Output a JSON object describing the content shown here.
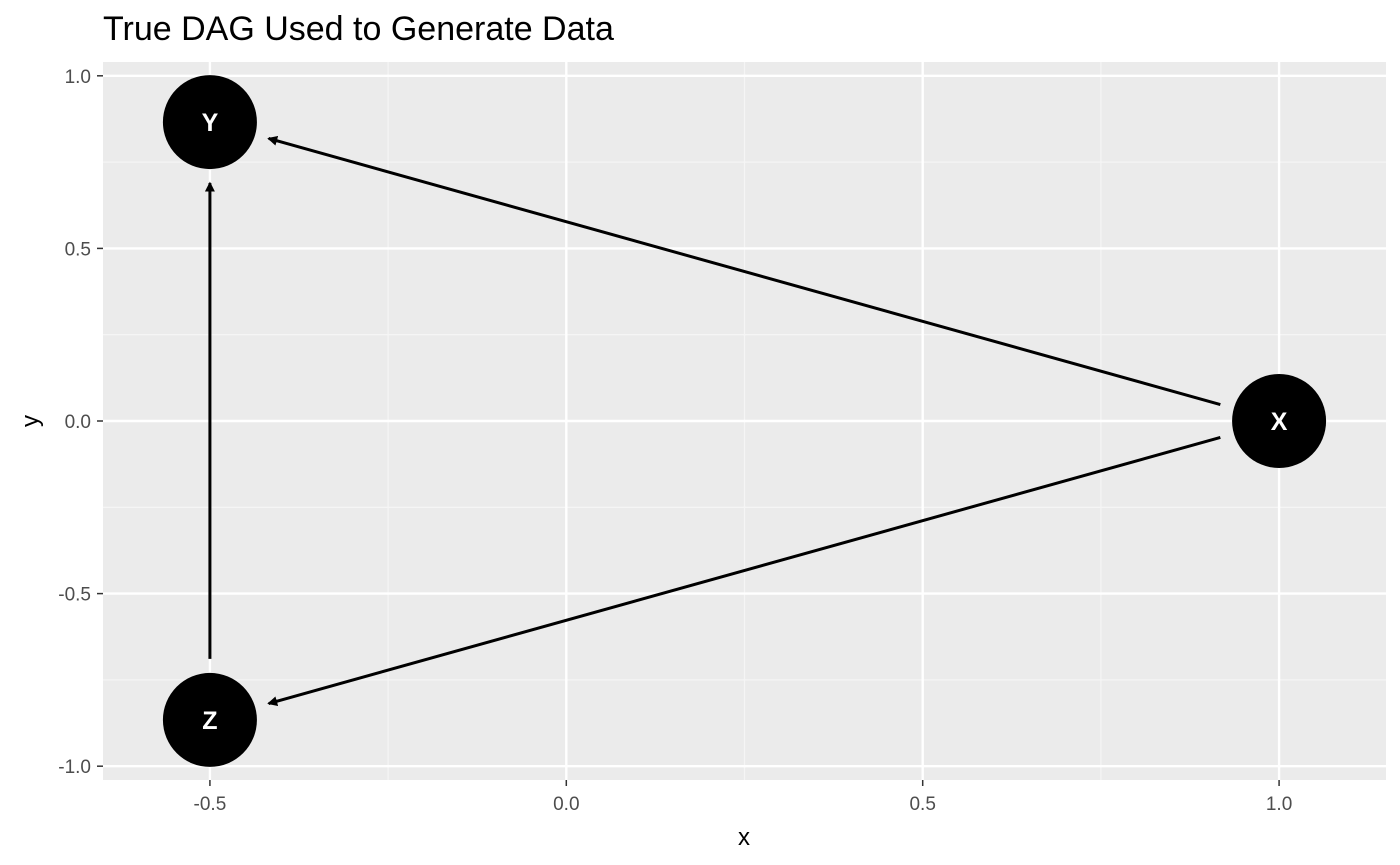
{
  "title": "True DAG Used to Generate Data",
  "colors": {
    "panel": "#ebebeb",
    "grid_major": "#ffffff",
    "grid_minor": "#f5f5f5",
    "node_fill": "#000000",
    "node_text": "#ffffff",
    "edge": "#000000",
    "tick_text": "#4d4d4d"
  },
  "chart_data": {
    "type": "network",
    "title": "True DAG Used to Generate Data",
    "xlabel": "x",
    "ylabel": "y",
    "xlim": [
      -0.65,
      1.15
    ],
    "ylim": [
      -1.04,
      1.04
    ],
    "x_ticks": [
      -0.5,
      0.0,
      0.5,
      1.0
    ],
    "x_tick_labels": [
      "-0.5",
      "0.0",
      "0.5",
      "1.0"
    ],
    "y_ticks": [
      -1.0,
      -0.5,
      0.0,
      0.5,
      1.0
    ],
    "y_tick_labels": [
      "-1.0",
      "-0.5",
      "0.0",
      "0.5",
      "1.0"
    ],
    "grid": true,
    "nodes": [
      {
        "id": "X",
        "label": "X",
        "x": 1.0,
        "y": 0.0
      },
      {
        "id": "Y",
        "label": "Y",
        "x": -0.5,
        "y": 0.866
      },
      {
        "id": "Z",
        "label": "Z",
        "x": -0.5,
        "y": -0.866
      }
    ],
    "edges": [
      {
        "from": "X",
        "to": "Y"
      },
      {
        "from": "X",
        "to": "Z"
      },
      {
        "from": "Z",
        "to": "Y"
      }
    ]
  }
}
